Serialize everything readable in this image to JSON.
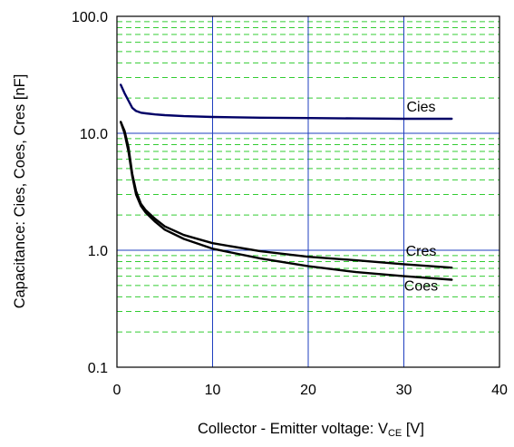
{
  "chart_data": {
    "type": "line",
    "xlabel": {
      "prefix": "Collector - Emitter voltage: V",
      "subscript": "CE",
      "suffix": " [V]"
    },
    "ylabel": "Capacitance: Cies, Coes, Cres [nF]",
    "xlim": [
      0,
      40
    ],
    "ylim": [
      0.1,
      100
    ],
    "yscale": "log",
    "xticks": [
      0,
      10,
      20,
      30,
      40
    ],
    "xtick_labels": [
      "0",
      "10",
      "20",
      "30",
      "40"
    ],
    "yticks": [
      0.1,
      1,
      10,
      100
    ],
    "ytick_labels": [
      "0.1",
      "1.0",
      "10.0",
      "100.0"
    ],
    "grid": {
      "major": true,
      "minor": true,
      "major_color": "#1f3fbf",
      "minor_color": "#33cc33"
    },
    "series": [
      {
        "name": "Cies",
        "color": "#000066",
        "x": [
          0.4,
          0.8,
          1.2,
          1.6,
          2.0,
          2.5,
          3.0,
          4.0,
          5.0,
          7.0,
          10.0,
          15.0,
          20.0,
          25.0,
          30.0,
          35.0
        ],
        "y": [
          26.0,
          22.0,
          19.0,
          16.5,
          15.5,
          15.0,
          14.8,
          14.5,
          14.3,
          14.0,
          13.8,
          13.6,
          13.5,
          13.4,
          13.3,
          13.3
        ]
      },
      {
        "name": "Cres",
        "color": "#000000",
        "x": [
          0.4,
          0.8,
          1.2,
          1.6,
          2.0,
          2.5,
          3.0,
          4.0,
          5.0,
          7.0,
          10.0,
          15.0,
          20.0,
          25.0,
          30.0,
          35.0
        ],
        "y": [
          12.5,
          10.5,
          7.6,
          4.5,
          3.2,
          2.5,
          2.2,
          1.85,
          1.6,
          1.35,
          1.15,
          0.98,
          0.88,
          0.82,
          0.76,
          0.71
        ]
      },
      {
        "name": "Coes",
        "color": "#000000",
        "x": [
          0.4,
          0.8,
          1.2,
          1.6,
          2.0,
          2.5,
          3.0,
          4.0,
          5.0,
          7.0,
          10.0,
          15.0,
          20.0,
          25.0,
          30.0,
          35.0
        ],
        "y": [
          12.5,
          10.0,
          7.0,
          4.3,
          3.0,
          2.4,
          2.1,
          1.75,
          1.5,
          1.25,
          1.03,
          0.85,
          0.73,
          0.65,
          0.6,
          0.56
        ]
      }
    ],
    "annotations": [
      {
        "text": "Cies",
        "x": 31.8,
        "y": 15.3
      },
      {
        "text": "Cres",
        "x": 31.8,
        "y": 0.9
      },
      {
        "text": "Coes",
        "x": 31.8,
        "y": 0.45
      }
    ]
  }
}
